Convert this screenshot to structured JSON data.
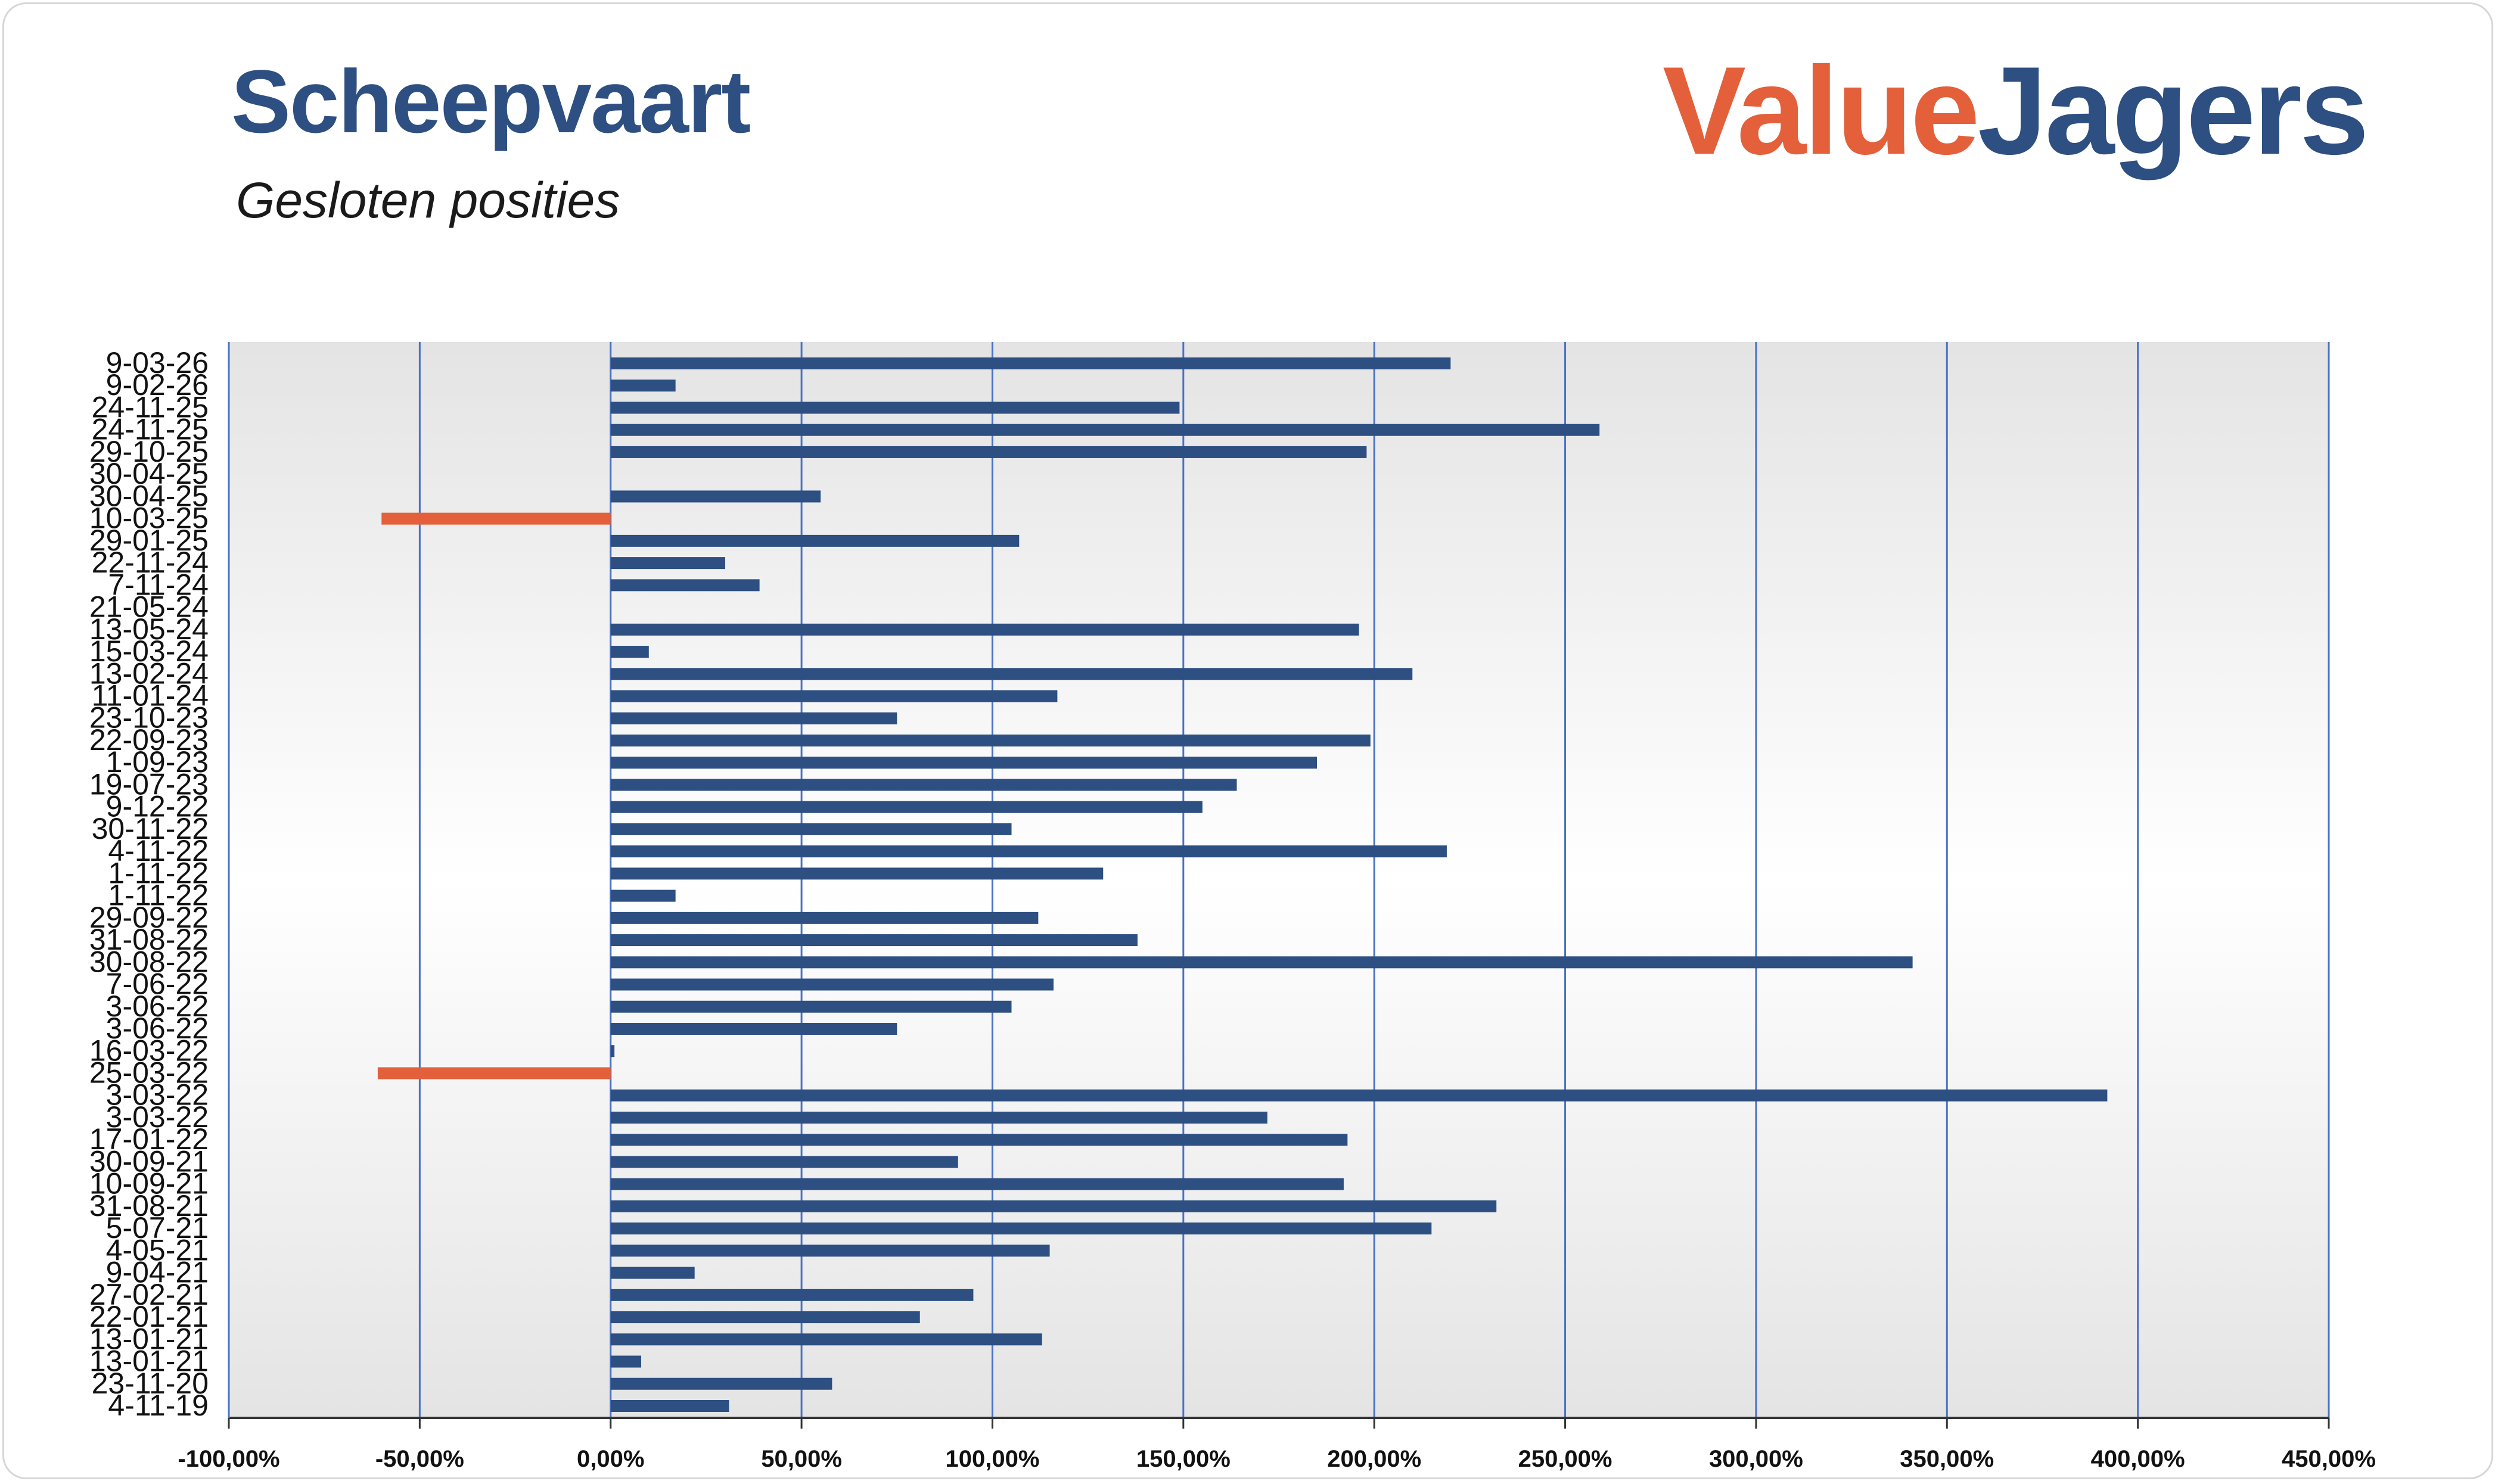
{
  "header": {
    "title": "Scheepvaart",
    "subtitle": "Gesloten posities",
    "logo_part1": "Value",
    "logo_part2": "Jagers"
  },
  "colors": {
    "positive": "#2d4f81",
    "negative": "#e3603b",
    "gridline": "#4a72c4",
    "plot_bg_edge": "#e4e4e4",
    "plot_bg_center": "#ffffff"
  },
  "chart_data": {
    "type": "bar",
    "orientation": "horizontal",
    "title": "Scheepvaart",
    "subtitle": "Gesloten posities",
    "xlim": [
      -100,
      450
    ],
    "x_ticks": [
      -100,
      -50,
      0,
      50,
      100,
      150,
      200,
      250,
      300,
      350,
      400,
      450
    ],
    "x_tick_labels": [
      "-100,00%",
      "-50,00%",
      "0,00%",
      "50,00%",
      "100,00%",
      "150,00%",
      "200,00%",
      "250,00%",
      "300,00%",
      "350,00%",
      "400,00%",
      "450,00%"
    ],
    "grid": "vertical",
    "categories": [
      "9-03-26",
      "9-02-26",
      "24-11-25",
      "24-11-25",
      "29-10-25",
      "30-04-25",
      "30-04-25",
      "10-03-25",
      "29-01-25",
      "22-11-24",
      "7-11-24",
      "21-05-24",
      "13-05-24",
      "15-03-24",
      "13-02-24",
      "11-01-24",
      "23-10-23",
      "22-09-23",
      "1-09-23",
      "19-07-23",
      "9-12-22",
      "30-11-22",
      "4-11-22",
      "1-11-22",
      "1-11-22",
      "29-09-22",
      "31-08-22",
      "30-08-22",
      "7-06-22",
      "3-06-22",
      "3-06-22",
      "16-03-22",
      "25-03-22",
      "3-03-22",
      "3-03-22",
      "17-01-22",
      "30-09-21",
      "10-09-21",
      "31-08-21",
      "5-07-21",
      "4-05-21",
      "9-04-21",
      "27-02-21",
      "22-01-21",
      "13-01-21",
      "13-01-21",
      "23-11-20",
      "4-11-19"
    ],
    "values": [
      220,
      17,
      149,
      259,
      198,
      0,
      55,
      -60,
      107,
      30,
      39,
      0,
      196,
      10,
      210,
      117,
      75,
      199,
      185,
      164,
      155,
      105,
      219,
      129,
      17,
      112,
      138,
      341,
      116,
      105,
      75,
      1,
      -61,
      392,
      172,
      193,
      91,
      192,
      232,
      215,
      115,
      22,
      95,
      81,
      113,
      8,
      58,
      31
    ]
  }
}
